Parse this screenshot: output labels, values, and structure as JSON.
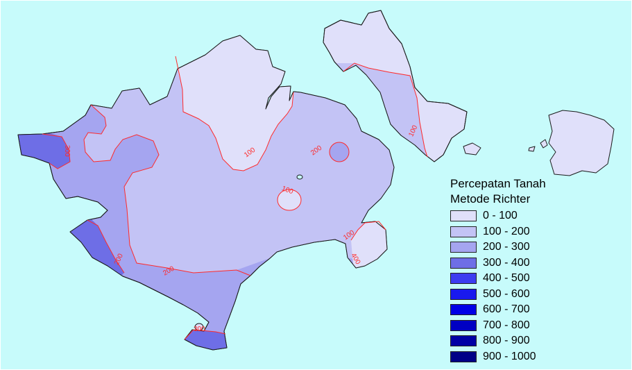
{
  "legend": {
    "title_line1": "Percepatan Tanah",
    "title_line2": "Metode Richter",
    "items": [
      {
        "label": "0 - 100",
        "color": "#e0e0fa"
      },
      {
        "label": "100 - 200",
        "color": "#c3c3f5"
      },
      {
        "label": "200 - 300",
        "color": "#a5a5f0"
      },
      {
        "label": "300 - 400",
        "color": "#6e6ee6"
      },
      {
        "label": "400 - 500",
        "color": "#3c3cf0"
      },
      {
        "label": "500 - 600",
        "color": "#1919ee"
      },
      {
        "label": "600 - 700",
        "color": "#0000e6"
      },
      {
        "label": "700 - 800",
        "color": "#0000c3"
      },
      {
        "label": "800 - 900",
        "color": "#0000a5"
      },
      {
        "label": "900 - 1000",
        "color": "#000087"
      }
    ]
  },
  "contour_labels": [
    {
      "text": "100"
    },
    {
      "text": "100"
    },
    {
      "text": "100"
    },
    {
      "text": "100"
    },
    {
      "text": "200"
    },
    {
      "text": "200"
    },
    {
      "text": "200"
    },
    {
      "text": "300"
    },
    {
      "text": "400"
    },
    {
      "text": "300"
    }
  ],
  "colors": {
    "sea": "#c7fbfb",
    "contour": "#ff2a2a",
    "coastline": "#1a1a1a"
  }
}
